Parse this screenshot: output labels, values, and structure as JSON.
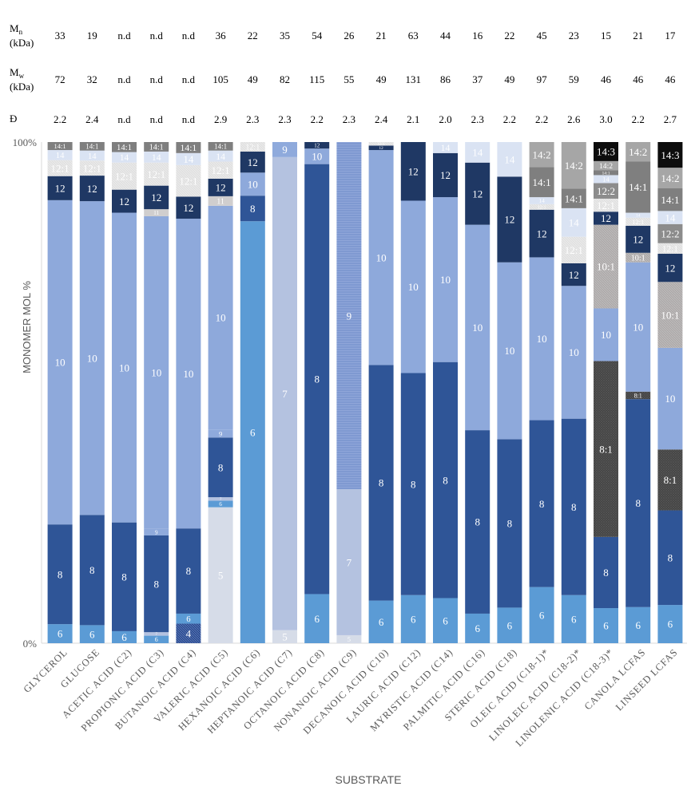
{
  "chart_data": {
    "type": "bar",
    "stacked": true,
    "normalized": true,
    "xlabel": "SUBSTRATE",
    "ylabel": "MONOMER MOL %",
    "ylim": [
      0,
      100
    ],
    "y_ticks": [
      "0%",
      "100%"
    ],
    "table_rows": [
      {
        "label_main": "M",
        "label_sub": "n",
        "label_unit": "(kDa)",
        "values": [
          "33",
          "19",
          "n.d",
          "n.d",
          "n.d",
          "36",
          "22",
          "35",
          "54",
          "26",
          "21",
          "63",
          "44",
          "16",
          "22",
          "45",
          "23",
          "15",
          "21",
          "17"
        ]
      },
      {
        "label_main": "M",
        "label_sub": "w",
        "label_unit": "(kDa)",
        "values": [
          "72",
          "32",
          "n.d",
          "n.d",
          "n.d",
          "105",
          "49",
          "82",
          "115",
          "55",
          "49",
          "131",
          "86",
          "37",
          "49",
          "97",
          "59",
          "46",
          "46",
          "46"
        ]
      },
      {
        "label_main": "Đ",
        "label_sub": "",
        "label_unit": "",
        "values": [
          "2.2",
          "2.4",
          "n.d",
          "n.d",
          "n.d",
          "2.9",
          "2.3",
          "2.3",
          "2.2",
          "2.3",
          "2.4",
          "2.1",
          "2.0",
          "2.3",
          "2.2",
          "2.2",
          "2.6",
          "3.0",
          "2.2",
          "2.7"
        ]
      }
    ],
    "categories": [
      "GLYCEROL",
      "GLUCOSE",
      "ACETIC ACID (C2)",
      "PROPIONIC ACID (C3)",
      "BUTANOIC ACID (C4)",
      "VALERIC ACID (C5)",
      "HEXANOIC ACID (C6)",
      "HEPTANOIC ACID (C7)",
      "OCTANOIC ACID (C8)",
      "NONANOIC ACID (C9)",
      "DECANOIC ACID (C10)",
      "LAURIC ACID (C12)",
      "MYRISTIC ACID (C14)",
      "PALMITIC ACID (C16)",
      "STERIC ACID (C18)",
      "OLEIC ACID (C18-1)*",
      "LINOLEIC ACID (C18-2)*",
      "LINOLENIC ACID (C18-3)*",
      "CANOLA LCFAS",
      "LINSEED LCFAS"
    ],
    "monomer_colors": {
      "4": "#2E4C8C",
      "5": "#D6DCE8",
      "6": "#5B9BD5",
      "7": "#B4C2E0",
      "8": "#2F5597",
      "9": "#8FAADC",
      "10": "#8EA9DB",
      "11": "#D0CECE",
      "12": "#1F3864",
      "12:1": "#E2E2E2",
      "12:2": "#8C8C8C",
      "14": "#DAE3F3",
      "14:1": "#7F7F7F",
      "14:2": "#A6A6A6",
      "14:3": "#0D0D0D",
      "10:1": "#AEAAAA",
      "8:1": "#3A3A3A"
    },
    "series": [
      {
        "category": "GLYCEROL",
        "segments": [
          {
            "m": "6",
            "v": 3.8,
            "label": "6"
          },
          {
            "m": "8",
            "v": 19.9,
            "label": "8"
          },
          {
            "m": "10",
            "v": 64.7,
            "label": "10"
          },
          {
            "m": "12",
            "v": 4.8,
            "label": "12"
          },
          {
            "m": "12:1",
            "v": 3.2,
            "label": "12:1"
          },
          {
            "m": "14",
            "v": 2.0,
            "label": "14"
          },
          {
            "m": "14:1",
            "v": 1.6,
            "label": "14:1"
          }
        ]
      },
      {
        "category": "GLUCOSE",
        "segments": [
          {
            "m": "6",
            "v": 3.6,
            "label": "6"
          },
          {
            "m": "8",
            "v": 22.0,
            "label": "8"
          },
          {
            "m": "10",
            "v": 62.6,
            "label": "10"
          },
          {
            "m": "12",
            "v": 5.1,
            "label": "12"
          },
          {
            "m": "12:1",
            "v": 3.0,
            "label": "12:1"
          },
          {
            "m": "14",
            "v": 2.0,
            "label": "14"
          },
          {
            "m": "14:1",
            "v": 1.7,
            "label": "14:1"
          }
        ]
      },
      {
        "category": "ACETIC ACID (C2)",
        "segments": [
          {
            "m": "6",
            "v": 2.4,
            "label": "6"
          },
          {
            "m": "8",
            "v": 21.7,
            "label": "8"
          },
          {
            "m": "10",
            "v": 61.8,
            "label": "10"
          },
          {
            "m": "12",
            "v": 4.6,
            "label": "12"
          },
          {
            "m": "12:1",
            "v": 5.4,
            "label": "12:1"
          },
          {
            "m": "14",
            "v": 2.1,
            "label": "14"
          },
          {
            "m": "14:1",
            "v": 2.0,
            "label": "14:1"
          }
        ]
      },
      {
        "category": "PROPIONIC ACID (C3)",
        "segments": [
          {
            "m": "6",
            "v": 1.5,
            "label": "6"
          },
          {
            "m": "7",
            "v": 0.7,
            "label": "7"
          },
          {
            "m": "8",
            "v": 19.3,
            "label": "8"
          },
          {
            "m": "9",
            "v": 1.3,
            "label": "9"
          },
          {
            "m": "10",
            "v": 62.4,
            "label": "10"
          },
          {
            "m": "11",
            "v": 1.4,
            "label": "11"
          },
          {
            "m": "12",
            "v": 4.7,
            "label": "12"
          },
          {
            "m": "12:1",
            "v": 4.6,
            "label": "12:1"
          },
          {
            "m": "14",
            "v": 2.2,
            "label": "14"
          },
          {
            "m": "14:1",
            "v": 1.9,
            "label": "14:1"
          }
        ]
      },
      {
        "category": "BUTANOIC ACID (C4)",
        "segments": [
          {
            "m": "4",
            "v": 3.9,
            "label": "4"
          },
          {
            "m": "6",
            "v": 2.0,
            "label": "6"
          },
          {
            "m": "8",
            "v": 17.0,
            "label": "8"
          },
          {
            "m": "10",
            "v": 61.8,
            "label": "10"
          },
          {
            "m": "12",
            "v": 4.4,
            "label": "12"
          },
          {
            "m": "12:1",
            "v": 6.3,
            "label": "12:1"
          },
          {
            "m": "14",
            "v": 2.4,
            "label": "14"
          },
          {
            "m": "14:1",
            "v": 2.2,
            "label": "14:1"
          }
        ]
      },
      {
        "category": "VALERIC ACID (C5)",
        "segments": [
          {
            "m": "5",
            "v": 27.1,
            "label": "5"
          },
          {
            "m": "6",
            "v": 1.3,
            "label": "6"
          },
          {
            "m": "7",
            "v": 0.7,
            "label": "7"
          },
          {
            "m": "8",
            "v": 11.9,
            "label": "8"
          },
          {
            "m": "9",
            "v": 1.6,
            "label": "9"
          },
          {
            "m": "10",
            "v": 44.6,
            "label": "10"
          },
          {
            "m": "11",
            "v": 1.9,
            "label": "11"
          },
          {
            "m": "12",
            "v": 3.5,
            "label": "12"
          },
          {
            "m": "12:1",
            "v": 3.4,
            "label": "12:1"
          },
          {
            "m": "14",
            "v": 2.2,
            "label": "14"
          },
          {
            "m": "14:1",
            "v": 1.7,
            "label": "14:1"
          }
        ]
      },
      {
        "category": "HEXANOIC ACID (C6)",
        "segments": [
          {
            "m": "6",
            "v": 84.2,
            "label": "6"
          },
          {
            "m": "8",
            "v": 5.1,
            "label": "8"
          },
          {
            "m": "10",
            "v": 4.6,
            "label": "10"
          },
          {
            "m": "12",
            "v": 4.2,
            "label": "12"
          },
          {
            "m": "12:1",
            "v": 1.9,
            "label": "12:1"
          }
        ]
      },
      {
        "category": "HEPTANOIC ACID (C7)",
        "segments": [
          {
            "m": "5",
            "v": 2.6,
            "label": "5"
          },
          {
            "m": "7",
            "v": 94.4,
            "label": "7"
          },
          {
            "m": "9",
            "v": 3.0,
            "label": "9"
          }
        ]
      },
      {
        "category": "OCTANOIC ACID (C8)",
        "segments": [
          {
            "m": "6",
            "v": 9.8,
            "label": "6"
          },
          {
            "m": "8",
            "v": 85.8,
            "label": "8"
          },
          {
            "m": "10",
            "v": 3.1,
            "label": "10"
          },
          {
            "m": "12",
            "v": 1.3,
            "label": "12"
          }
        ]
      },
      {
        "category": "NONANOIC ACID (C9)",
        "segments": [
          {
            "m": "5",
            "v": 1.6,
            "label": "5"
          },
          {
            "m": "7",
            "v": 29.1,
            "label": "7"
          },
          {
            "m": "9",
            "v": 69.3,
            "label": "9"
          }
        ]
      },
      {
        "category": "DECANOIC ACID (C10)",
        "segments": [
          {
            "m": "6",
            "v": 8.5,
            "label": "6"
          },
          {
            "m": "8",
            "v": 47.0,
            "label": "8"
          },
          {
            "m": "10",
            "v": 42.9,
            "label": "10"
          },
          {
            "m": "12",
            "v": 0.9,
            "label": "12"
          },
          {
            "m": "12:1",
            "v": 0.7,
            "label": "12:1"
          }
        ]
      },
      {
        "category": "LAURIC ACID (C12)",
        "segments": [
          {
            "m": "6",
            "v": 9.6,
            "label": "6"
          },
          {
            "m": "8",
            "v": 44.3,
            "label": "8"
          },
          {
            "m": "10",
            "v": 34.4,
            "label": "10"
          },
          {
            "m": "12",
            "v": 11.7,
            "label": "12"
          }
        ]
      },
      {
        "category": "MYRISTIC ACID (C14)",
        "segments": [
          {
            "m": "6",
            "v": 9.0,
            "label": "6"
          },
          {
            "m": "8",
            "v": 47.1,
            "label": "8"
          },
          {
            "m": "10",
            "v": 32.9,
            "label": "10"
          },
          {
            "m": "12",
            "v": 8.8,
            "label": "12"
          },
          {
            "m": "14",
            "v": 2.2,
            "label": "14"
          }
        ]
      },
      {
        "category": "PALMITIC ACID (C16)",
        "segments": [
          {
            "m": "6",
            "v": 5.9,
            "label": "6"
          },
          {
            "m": "8",
            "v": 36.6,
            "label": "8"
          },
          {
            "m": "10",
            "v": 41.0,
            "label": "10"
          },
          {
            "m": "12",
            "v": 12.4,
            "label": "12"
          },
          {
            "m": "14",
            "v": 4.1,
            "label": "14"
          }
        ]
      },
      {
        "category": "STERIC ACID (C18)",
        "segments": [
          {
            "m": "6",
            "v": 7.1,
            "label": "6"
          },
          {
            "m": "8",
            "v": 33.6,
            "label": "8"
          },
          {
            "m": "10",
            "v": 35.3,
            "label": "10"
          },
          {
            "m": "12",
            "v": 17.1,
            "label": "12"
          },
          {
            "m": "14",
            "v": 6.9,
            "label": "14"
          }
        ]
      },
      {
        "category": "OLEIC ACID (C18-1)*",
        "segments": [
          {
            "m": "6",
            "v": 11.2,
            "label": "6"
          },
          {
            "m": "8",
            "v": 33.3,
            "label": "8"
          },
          {
            "m": "10",
            "v": 32.5,
            "label": "10"
          },
          {
            "m": "12",
            "v": 9.5,
            "label": "12"
          },
          {
            "m": "12:1",
            "v": 1.1,
            "label": "12:1"
          },
          {
            "m": "14",
            "v": 1.4,
            "label": "14"
          },
          {
            "m": "14:1",
            "v": 6.0,
            "label": "14:1"
          },
          {
            "m": "14:2",
            "v": 5.0,
            "label": "14:2"
          }
        ]
      },
      {
        "category": "LINOLEIC ACID (C18-2)*",
        "segments": [
          {
            "m": "6",
            "v": 9.6,
            "label": "6"
          },
          {
            "m": "8",
            "v": 35.2,
            "label": "8"
          },
          {
            "m": "10",
            "v": 26.5,
            "label": "10"
          },
          {
            "m": "12",
            "v": 4.5,
            "label": "12"
          },
          {
            "m": "12:1",
            "v": 5.3,
            "label": "12:1"
          },
          {
            "m": "14",
            "v": 5.7,
            "label": "14"
          },
          {
            "m": "14:1",
            "v": 3.9,
            "label": "14:1"
          },
          {
            "m": "14:2",
            "v": 9.3,
            "label": "14:2"
          }
        ]
      },
      {
        "category": "LINOLENIC ACID (C18-3)*",
        "segments": [
          {
            "m": "6",
            "v": 7.0,
            "label": "6"
          },
          {
            "m": "8",
            "v": 14.2,
            "label": "8"
          },
          {
            "m": "8:1",
            "v": 35.1,
            "label": "8:1"
          },
          {
            "m": "10",
            "v": 10.5,
            "label": "10"
          },
          {
            "m": "10:1",
            "v": 16.7,
            "label": "10:1"
          },
          {
            "m": "12",
            "v": 2.6,
            "label": "12"
          },
          {
            "m": "12:1",
            "v": 2.6,
            "label": "12:1"
          },
          {
            "m": "12:2",
            "v": 3.1,
            "label": "12:2"
          },
          {
            "m": "14",
            "v": 1.6,
            "label": "14"
          },
          {
            "m": "14:1",
            "v": 1.0,
            "label": "14:1"
          },
          {
            "m": "14:2",
            "v": 1.8,
            "label": "14:2"
          },
          {
            "m": "14:3",
            "v": 3.8,
            "label": "14:3"
          }
        ]
      },
      {
        "category": "CANOLA LCFAS",
        "segments": [
          {
            "m": "6",
            "v": 7.2,
            "label": "6"
          },
          {
            "m": "8",
            "v": 41.5,
            "label": "8"
          },
          {
            "m": "8:1",
            "v": 1.5,
            "label": "8:1"
          },
          {
            "m": "10",
            "v": 25.8,
            "label": "10"
          },
          {
            "m": "10:1",
            "v": 1.9,
            "label": "10:1"
          },
          {
            "m": "12",
            "v": 5.4,
            "label": "12"
          },
          {
            "m": "12:1",
            "v": 1.6,
            "label": "12:1"
          },
          {
            "m": "14",
            "v": 1.0,
            "label": "14"
          },
          {
            "m": "14:1",
            "v": 10.2,
            "label": "14:1"
          },
          {
            "m": "14:2",
            "v": 3.9,
            "label": "14:2"
          }
        ]
      },
      {
        "category": "LINSEED LCFAS",
        "segments": [
          {
            "m": "6",
            "v": 7.6,
            "label": "6"
          },
          {
            "m": "8",
            "v": 18.8,
            "label": "8"
          },
          {
            "m": "8:1",
            "v": 12.1,
            "label": "8:1"
          },
          {
            "m": "10",
            "v": 20.2,
            "label": "10"
          },
          {
            "m": "10:1",
            "v": 13.1,
            "label": "10:1"
          },
          {
            "m": "12",
            "v": 5.6,
            "label": "12"
          },
          {
            "m": "12:1",
            "v": 2.1,
            "label": "12:1"
          },
          {
            "m": "12:2",
            "v": 3.8,
            "label": "12:2"
          },
          {
            "m": "14",
            "v": 2.6,
            "label": "14"
          },
          {
            "m": "14:1",
            "v": 4.5,
            "label": "14:1"
          },
          {
            "m": "14:2",
            "v": 4.1,
            "label": "14:2"
          },
          {
            "m": "14:3",
            "v": 5.1,
            "label": "14:3"
          }
        ]
      }
    ]
  }
}
